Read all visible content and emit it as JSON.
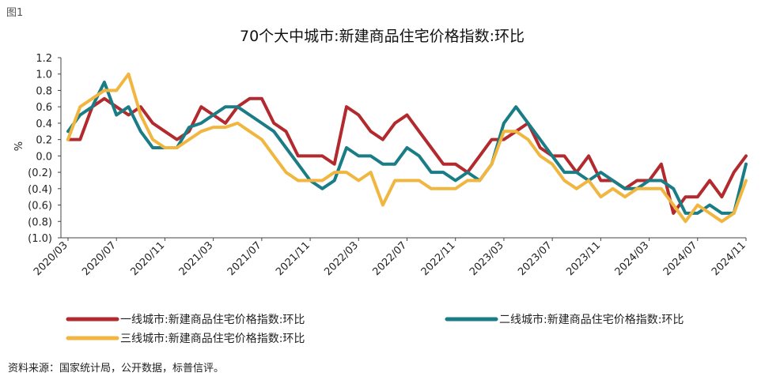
{
  "figure_label": "图1",
  "source_note": "资料来源：国家统计局，公开数据，标普信评。",
  "colors": {
    "tier1": "#b22a2e",
    "tier2": "#1a7d86",
    "tier3": "#f0b63f",
    "axis": "#444444"
  },
  "chart_data": {
    "type": "line",
    "title": "70个大中城市:新建商品住宅价格指数:环比",
    "xlabel": "",
    "ylabel": "%",
    "ylim": [
      -1.0,
      1.2
    ],
    "yticks": [
      1.2,
      1.0,
      0.8,
      0.6,
      0.4,
      0.2,
      0.0,
      -0.2,
      -0.4,
      -0.6,
      -0.8,
      -1.0
    ],
    "ytick_labels": [
      "1.2",
      "1.0",
      "0.8",
      "0.6",
      "0.4",
      "0.2",
      "0.0",
      "(0.2)",
      "(0.4)",
      "(0.6)",
      "(0.8)",
      "(1.0)"
    ],
    "xtick_labels": [
      "2020/03",
      "2020/07",
      "2020/11",
      "2021/03",
      "2021/07",
      "2021/11",
      "2022/03",
      "2022/07",
      "2022/11",
      "2023/03",
      "2023/07",
      "2023/11",
      "2024/03",
      "2024/07",
      "2024/11"
    ],
    "x": [
      "2020/03",
      "2020/04",
      "2020/05",
      "2020/06",
      "2020/07",
      "2020/08",
      "2020/09",
      "2020/10",
      "2020/11",
      "2020/12",
      "2021/01",
      "2021/02",
      "2021/03",
      "2021/04",
      "2021/05",
      "2021/06",
      "2021/07",
      "2021/08",
      "2021/09",
      "2021/10",
      "2021/11",
      "2021/12",
      "2022/01",
      "2022/02",
      "2022/03",
      "2022/04",
      "2022/05",
      "2022/06",
      "2022/07",
      "2022/08",
      "2022/09",
      "2022/10",
      "2022/11",
      "2022/12",
      "2023/01",
      "2023/02",
      "2023/03",
      "2023/04",
      "2023/05",
      "2023/06",
      "2023/07",
      "2023/08",
      "2023/09",
      "2023/10",
      "2023/11",
      "2023/12",
      "2024/01",
      "2024/02",
      "2024/03",
      "2024/04",
      "2024/05",
      "2024/06",
      "2024/07",
      "2024/08",
      "2024/09",
      "2024/10",
      "2024/11"
    ],
    "legend_position": "bottom",
    "grid": false,
    "series": [
      {
        "name": "一线城市:新建商品住宅价格指数:环比",
        "color_key": "tier1",
        "values": [
          0.2,
          0.2,
          0.6,
          0.7,
          0.6,
          0.5,
          0.6,
          0.4,
          0.3,
          0.2,
          0.3,
          0.6,
          0.5,
          0.4,
          0.6,
          0.7,
          0.7,
          0.4,
          0.3,
          0.0,
          0.0,
          0.0,
          -0.1,
          0.6,
          0.5,
          0.3,
          0.2,
          0.4,
          0.5,
          0.3,
          0.1,
          -0.1,
          -0.1,
          -0.2,
          0.0,
          0.2,
          0.2,
          0.3,
          0.4,
          0.1,
          0.0,
          0.0,
          -0.2,
          0.0,
          -0.3,
          -0.3,
          -0.4,
          -0.3,
          -0.3,
          -0.1,
          -0.7,
          -0.5,
          -0.5,
          -0.3,
          -0.5,
          -0.2,
          0.0
        ]
      },
      {
        "name": "二线城市:新建商品住宅价格指数:环比",
        "color_key": "tier2",
        "values": [
          0.3,
          0.5,
          0.6,
          0.9,
          0.5,
          0.6,
          0.3,
          0.1,
          0.1,
          0.1,
          0.35,
          0.4,
          0.5,
          0.6,
          0.6,
          0.5,
          0.4,
          0.3,
          0.1,
          -0.1,
          -0.3,
          -0.4,
          -0.3,
          0.1,
          0.0,
          0.0,
          -0.1,
          -0.1,
          0.1,
          0.0,
          -0.2,
          -0.2,
          -0.3,
          -0.2,
          -0.3,
          -0.1,
          0.4,
          0.6,
          0.4,
          0.2,
          0.0,
          -0.2,
          -0.2,
          -0.3,
          -0.2,
          -0.3,
          -0.4,
          -0.4,
          -0.3,
          -0.3,
          -0.4,
          -0.7,
          -0.7,
          -0.6,
          -0.7,
          -0.7,
          -0.1
        ]
      },
      {
        "name": "三线城市:新建商品住宅价格指数:环比",
        "color_key": "tier3",
        "values": [
          0.2,
          0.6,
          0.7,
          0.8,
          0.8,
          1.0,
          0.5,
          0.2,
          0.1,
          0.1,
          0.2,
          0.3,
          0.35,
          0.35,
          0.4,
          0.3,
          0.2,
          0.0,
          -0.2,
          -0.3,
          -0.3,
          -0.3,
          -0.2,
          -0.2,
          -0.3,
          -0.2,
          -0.6,
          -0.3,
          -0.3,
          -0.3,
          -0.4,
          -0.4,
          -0.4,
          -0.3,
          -0.3,
          -0.1,
          0.3,
          0.3,
          0.2,
          0.0,
          -0.1,
          -0.3,
          -0.4,
          -0.3,
          -0.5,
          -0.4,
          -0.5,
          -0.4,
          -0.4,
          -0.4,
          -0.6,
          -0.8,
          -0.6,
          -0.7,
          -0.8,
          -0.7,
          -0.3
        ]
      }
    ]
  }
}
